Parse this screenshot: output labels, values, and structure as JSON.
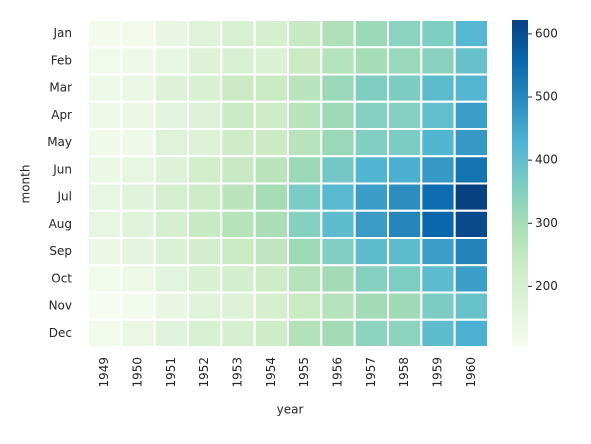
{
  "chart_data": {
    "type": "heatmap",
    "xlabel": "year",
    "ylabel": "month",
    "x": [
      "1949",
      "1950",
      "1951",
      "1952",
      "1953",
      "1954",
      "1955",
      "1956",
      "1957",
      "1958",
      "1959",
      "1960"
    ],
    "y": [
      "Jan",
      "Feb",
      "Mar",
      "Apr",
      "May",
      "Jun",
      "Jul",
      "Aug",
      "Sep",
      "Oct",
      "Nov",
      "Dec"
    ],
    "values": [
      [
        112,
        115,
        145,
        171,
        196,
        204,
        242,
        284,
        315,
        340,
        360,
        417
      ],
      [
        118,
        126,
        150,
        180,
        196,
        188,
        233,
        277,
        301,
        318,
        342,
        391
      ],
      [
        132,
        141,
        178,
        193,
        236,
        235,
        267,
        317,
        356,
        362,
        406,
        419
      ],
      [
        129,
        135,
        163,
        181,
        235,
        227,
        269,
        313,
        348,
        348,
        396,
        461
      ],
      [
        121,
        125,
        172,
        183,
        229,
        234,
        270,
        318,
        355,
        363,
        420,
        472
      ],
      [
        135,
        149,
        178,
        218,
        243,
        264,
        315,
        374,
        422,
        435,
        472,
        535
      ],
      [
        148,
        170,
        199,
        230,
        264,
        302,
        364,
        413,
        465,
        491,
        548,
        622
      ],
      [
        148,
        170,
        199,
        242,
        272,
        293,
        347,
        405,
        467,
        505,
        559,
        606
      ],
      [
        136,
        158,
        184,
        209,
        237,
        259,
        312,
        355,
        404,
        404,
        463,
        508
      ],
      [
        119,
        133,
        162,
        191,
        211,
        229,
        274,
        306,
        347,
        359,
        407,
        461
      ],
      [
        104,
        114,
        146,
        172,
        180,
        203,
        237,
        271,
        305,
        310,
        362,
        390
      ],
      [
        118,
        140,
        166,
        194,
        201,
        229,
        278,
        306,
        336,
        337,
        405,
        432
      ]
    ],
    "colorbar_lim": [
      104,
      622
    ],
    "colorbar_ticks": [
      200,
      300,
      400,
      500,
      600
    ],
    "colormap": [
      "#f7fcf0",
      "#e0f3db",
      "#ccebc5",
      "#a8ddb5",
      "#7bccc4",
      "#4eb3d3",
      "#2b8cbe",
      "#0868ac",
      "#084081"
    ]
  }
}
